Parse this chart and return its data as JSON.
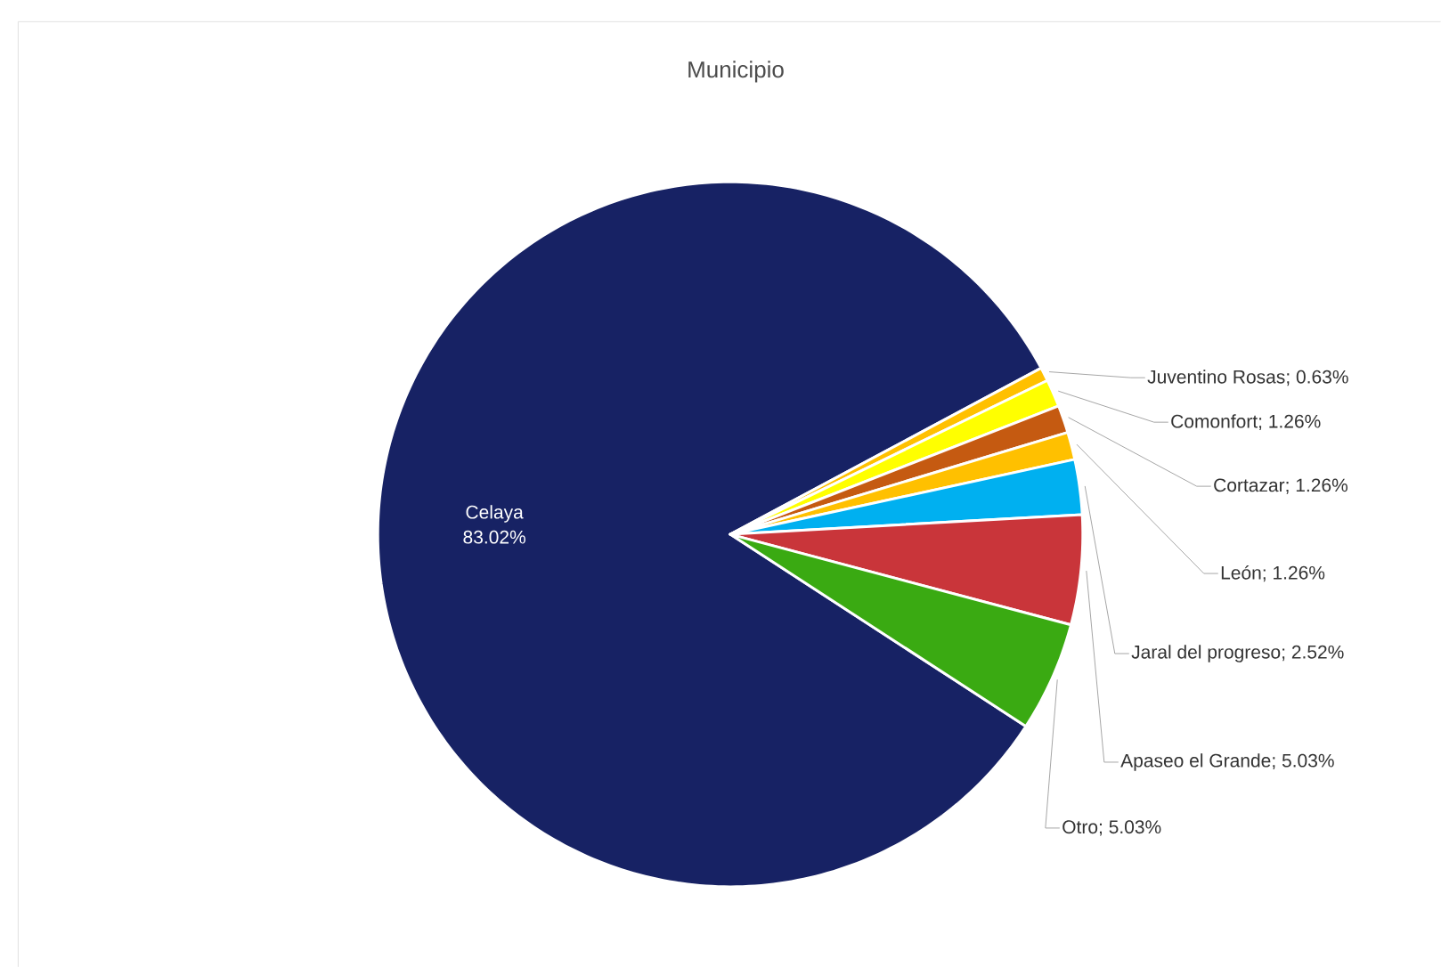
{
  "chart_data": {
    "type": "pie",
    "title": "Municipio",
    "categories": [
      "Celaya",
      "Juventino Rosas",
      "Comonfort",
      "Cortazar",
      "León",
      "Jaral del progreso",
      "Apaseo el Grande",
      "Otro"
    ],
    "values": [
      83.02,
      0.63,
      1.26,
      1.26,
      1.26,
      2.52,
      5.03,
      5.03
    ],
    "value_labels": [
      "83.02%",
      "; 0.63%",
      "; 1.26%",
      "; 1.26%",
      "; 1.26%",
      "; 2.52%",
      "; 5.03%",
      "; 5.03%"
    ],
    "colors": [
      "#172264",
      "#ffc000",
      "#ffff00",
      "#c55a11",
      "#ffc000",
      "#00b0f0",
      "#c9353a",
      "#3aaa12"
    ]
  }
}
